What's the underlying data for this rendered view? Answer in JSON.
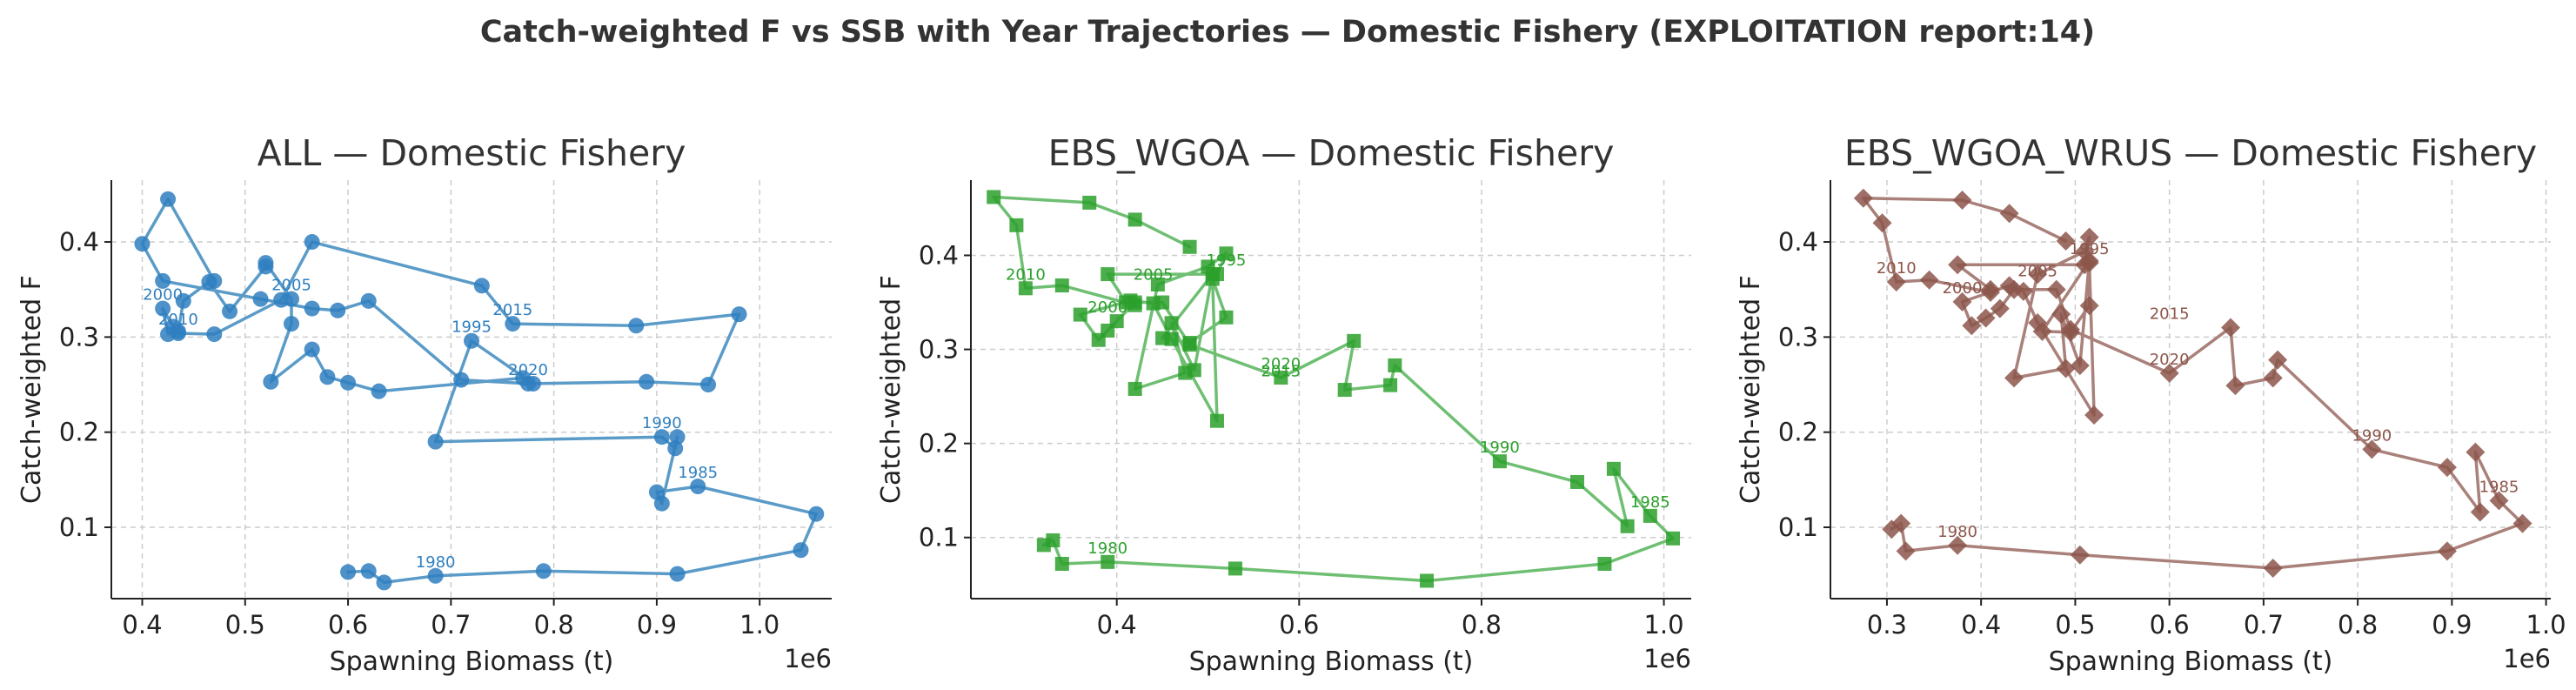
{
  "suptitle": "Catch-weighted F vs SSB with Year Trajectories — Domestic Fishery (EXPLOITATION report:14)",
  "chart_data": [
    {
      "type": "line",
      "title": "ALL — Domestic Fishery",
      "xlabel": "Spawning Biomass (t)",
      "ylabel": "Catch-weighted F",
      "x_offset_label": "1e6",
      "xlim": [
        0.37,
        1.07
      ],
      "ylim": [
        0.025,
        0.465
      ],
      "xticks": [
        0.4,
        0.5,
        0.6,
        0.7,
        0.8,
        0.9,
        1.0
      ],
      "xtick_labels": [
        "0.4",
        "0.5",
        "0.6",
        "0.7",
        "0.8",
        "0.9",
        "1.0"
      ],
      "yticks": [
        0.1,
        0.2,
        0.3,
        0.4
      ],
      "ytick_labels": [
        "0.1",
        "0.2",
        "0.3",
        "0.4"
      ],
      "grid": true,
      "color": "#5b9bc8",
      "marker": "circle",
      "series": [
        {
          "x": [
            0.6,
            0.62,
            0.635,
            0.685,
            0.79,
            0.92,
            1.04,
            1.055,
            0.94,
            0.9,
            0.905,
            0.92,
            0.918,
            0.905,
            0.685,
            0.72,
            0.78,
            0.77,
            0.63,
            0.6,
            0.58,
            0.565,
            0.525,
            0.545,
            0.545,
            0.52,
            0.52,
            0.485,
            0.465,
            0.44,
            0.435,
            0.425,
            0.42,
            0.43,
            0.435,
            0.47,
            0.535,
            0.565,
            0.73,
            0.76,
            0.88,
            0.98,
            0.95,
            0.89,
            0.775,
            0.71,
            0.62,
            0.59,
            0.565,
            0.515,
            0.42,
            0.4,
            0.425,
            0.47
          ],
          "y": [
            0.053,
            0.054,
            0.042,
            0.049,
            0.054,
            0.051,
            0.076,
            0.114,
            0.143,
            0.137,
            0.125,
            0.195,
            0.183,
            0.195,
            0.19,
            0.296,
            0.251,
            0.257,
            0.243,
            0.252,
            0.258,
            0.287,
            0.253,
            0.314,
            0.34,
            0.378,
            0.374,
            0.327,
            0.358,
            0.338,
            0.306,
            0.303,
            0.33,
            0.311,
            0.304,
            0.303,
            0.339,
            0.4,
            0.354,
            0.314,
            0.312,
            0.324,
            0.25,
            0.253,
            0.251,
            0.255,
            0.338,
            0.328,
            0.33,
            0.34,
            0.359,
            0.398,
            0.445,
            0.359
          ]
        }
      ],
      "annotations": [
        {
          "text": "1980",
          "x": 0.685,
          "y": 0.049
        },
        {
          "text": "1985",
          "x": 0.94,
          "y": 0.143
        },
        {
          "text": "1990",
          "x": 0.905,
          "y": 0.195
        },
        {
          "text": "1995",
          "x": 0.72,
          "y": 0.296
        },
        {
          "text": "2000",
          "x": 0.42,
          "y": 0.33
        },
        {
          "text": "2005",
          "x": 0.545,
          "y": 0.34
        },
        {
          "text": "2010",
          "x": 0.435,
          "y": 0.304
        },
        {
          "text": "2015",
          "x": 0.76,
          "y": 0.314
        },
        {
          "text": "2020",
          "x": 0.775,
          "y": 0.251
        }
      ]
    },
    {
      "type": "line",
      "title": "EBS_WGOA — Domestic Fishery",
      "xlabel": "Spawning Biomass (t)",
      "ylabel": "Catch-weighted F",
      "x_offset_label": "1e6",
      "xlim": [
        0.24,
        1.03
      ],
      "ylim": [
        0.035,
        0.48
      ],
      "xticks": [
        0.4,
        0.6,
        0.8,
        1.0
      ],
      "xtick_labels": [
        "0.4",
        "0.6",
        "0.8",
        "1.0"
      ],
      "yticks": [
        0.1,
        0.2,
        0.3,
        0.4
      ],
      "ytick_labels": [
        "0.1",
        "0.2",
        "0.3",
        "0.4"
      ],
      "grid": true,
      "color": "#6fbf73",
      "marker": "square",
      "series": [
        {
          "x": [
            0.32,
            0.33,
            0.34,
            0.39,
            0.53,
            0.74,
            0.935,
            1.01,
            0.985,
            0.945,
            0.96,
            0.905,
            0.82,
            0.705,
            0.7,
            0.65,
            0.66,
            0.58,
            0.48,
            0.45,
            0.42,
            0.4,
            0.39,
            0.38,
            0.36,
            0.415,
            0.44,
            0.46,
            0.51,
            0.505,
            0.52,
            0.48,
            0.45,
            0.505,
            0.485,
            0.46,
            0.475,
            0.42,
            0.445,
            0.5,
            0.52,
            0.51,
            0.39,
            0.41,
            0.42,
            0.34,
            0.3,
            0.29,
            0.265,
            0.37,
            0.42,
            0.48
          ],
          "y": [
            0.092,
            0.097,
            0.072,
            0.074,
            0.067,
            0.054,
            0.072,
            0.099,
            0.123,
            0.173,
            0.112,
            0.159,
            0.181,
            0.283,
            0.262,
            0.257,
            0.309,
            0.27,
            0.305,
            0.35,
            0.35,
            0.33,
            0.32,
            0.31,
            0.337,
            0.352,
            0.349,
            0.311,
            0.224,
            0.375,
            0.334,
            0.307,
            0.312,
            0.38,
            0.278,
            0.328,
            0.275,
            0.258,
            0.369,
            0.388,
            0.402,
            0.38,
            0.38,
            0.35,
            0.347,
            0.368,
            0.365,
            0.432,
            0.462,
            0.456,
            0.438,
            0.409
          ]
        }
      ],
      "annotations": [
        {
          "text": "1980",
          "x": 0.39,
          "y": 0.074
        },
        {
          "text": "1985",
          "x": 0.985,
          "y": 0.123
        },
        {
          "text": "1990",
          "x": 0.82,
          "y": 0.181
        },
        {
          "text": "1995",
          "x": 0.52,
          "y": 0.38
        },
        {
          "text": "2000",
          "x": 0.39,
          "y": 0.33
        },
        {
          "text": "2005",
          "x": 0.44,
          "y": 0.365
        },
        {
          "text": "2010",
          "x": 0.3,
          "y": 0.365
        },
        {
          "text": "2015",
          "x": 0.58,
          "y": 0.262
        },
        {
          "text": "2020",
          "x": 0.58,
          "y": 0.27
        }
      ]
    },
    {
      "type": "line",
      "title": "EBS_WGOA_WRUS — Domestic Fishery",
      "xlabel": "Spawning Biomass (t)",
      "ylabel": "Catch-weighted F",
      "x_offset_label": "1e6",
      "xlim": [
        0.24,
        1.005
      ],
      "ylim": [
        0.025,
        0.465
      ],
      "xticks": [
        0.3,
        0.4,
        0.5,
        0.6,
        0.7,
        0.8,
        0.9,
        1.0
      ],
      "xtick_labels": [
        "0.3",
        "0.4",
        "0.5",
        "0.6",
        "0.7",
        "0.8",
        "0.9",
        "1.0"
      ],
      "yticks": [
        0.1,
        0.2,
        0.3,
        0.4
      ],
      "ytick_labels": [
        "0.1",
        "0.2",
        "0.3",
        "0.4"
      ],
      "grid": true,
      "color": "#a9817a",
      "marker": "diamond",
      "series": [
        {
          "x": [
            0.305,
            0.315,
            0.32,
            0.375,
            0.505,
            0.71,
            0.895,
            0.975,
            0.95,
            0.925,
            0.93,
            0.895,
            0.815,
            0.715,
            0.71,
            0.67,
            0.665,
            0.6,
            0.495,
            0.48,
            0.435,
            0.42,
            0.405,
            0.39,
            0.38,
            0.43,
            0.445,
            0.46,
            0.52,
            0.515,
            0.515,
            0.495,
            0.465,
            0.515,
            0.505,
            0.485,
            0.49,
            0.435,
            0.46,
            0.51,
            0.515,
            0.51,
            0.375,
            0.41,
            0.41,
            0.345,
            0.31,
            0.295,
            0.275,
            0.38,
            0.43,
            0.49
          ],
          "y": [
            0.098,
            0.104,
            0.075,
            0.081,
            0.071,
            0.057,
            0.075,
            0.104,
            0.128,
            0.179,
            0.116,
            0.163,
            0.182,
            0.276,
            0.257,
            0.249,
            0.31,
            0.262,
            0.308,
            0.35,
            0.35,
            0.33,
            0.32,
            0.312,
            0.337,
            0.354,
            0.348,
            0.315,
            0.218,
            0.378,
            0.333,
            0.305,
            0.306,
            0.38,
            0.27,
            0.324,
            0.267,
            0.257,
            0.366,
            0.39,
            0.405,
            0.376,
            0.376,
            0.35,
            0.347,
            0.36,
            0.358,
            0.42,
            0.446,
            0.444,
            0.43,
            0.401
          ]
        }
      ],
      "annotations": [
        {
          "text": "1980",
          "x": 0.375,
          "y": 0.081
        },
        {
          "text": "1985",
          "x": 0.95,
          "y": 0.128
        },
        {
          "text": "1990",
          "x": 0.815,
          "y": 0.182
        },
        {
          "text": "1995",
          "x": 0.515,
          "y": 0.378
        },
        {
          "text": "2000",
          "x": 0.38,
          "y": 0.337
        },
        {
          "text": "2005",
          "x": 0.46,
          "y": 0.355
        },
        {
          "text": "2010",
          "x": 0.31,
          "y": 0.358
        },
        {
          "text": "2015",
          "x": 0.6,
          "y": 0.31
        },
        {
          "text": "2020",
          "x": 0.6,
          "y": 0.262
        }
      ]
    }
  ],
  "colors": {
    "all_marker": "#2f7fbf",
    "all_line": "#5b9bc8",
    "all_text": "#2f7fbf",
    "wgoa_marker": "#2ca02c",
    "wgoa_line": "#6fbf73",
    "wgoa_text": "#2ca02c",
    "wrus_marker": "#8c564b",
    "wrus_line": "#a9817a",
    "wrus_text": "#8c564b"
  }
}
